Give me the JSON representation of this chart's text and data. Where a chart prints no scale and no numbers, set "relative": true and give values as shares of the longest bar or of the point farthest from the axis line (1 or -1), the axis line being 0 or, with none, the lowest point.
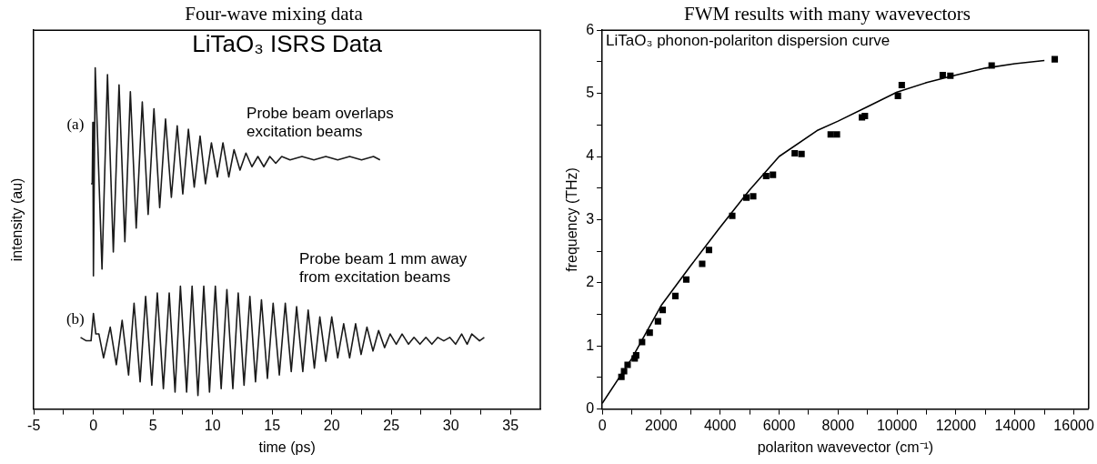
{
  "chart_data": [
    {
      "type": "line",
      "title": "Four-wave mixing data",
      "subtitle": "LiTaO₃ ISRS Data",
      "xlabel": "time (ps)",
      "ylabel": "intensity (au)",
      "relative": true,
      "tick_labels": "x",
      "xlim": [
        -5,
        37.5
      ],
      "xticks": [
        -5,
        {
          "value": -2.5,
          "label": null
        },
        0,
        {
          "value": 2.5,
          "label": null
        },
        5,
        {
          "value": 7.5,
          "label": null
        },
        10,
        {
          "value": 12.5,
          "label": null
        },
        15,
        {
          "value": 17.5,
          "label": null
        },
        20,
        {
          "value": 22.5,
          "label": null
        },
        25,
        {
          "value": 27.5,
          "label": null
        },
        30,
        {
          "value": 32.5,
          "label": null
        },
        35
      ],
      "series": [
        {
          "color": "#1a1a1a",
          "x": [
            -0.2,
            -0.1,
            -0.05,
            0,
            0.05,
            0.15,
            0.72,
            1.18,
            1.67,
            2.15,
            2.64,
            3.1,
            3.59,
            4.1,
            4.59,
            5.08,
            5.56,
            6.05,
            6.54,
            7.03,
            7.5,
            7.97,
            8.46,
            8.95,
            9.4,
            9.9,
            10.4,
            10.87,
            11.36,
            11.8,
            12.3,
            12.8,
            13.3,
            13.8,
            14.3,
            14.8,
            15.3,
            15.8,
            16.5,
            17.5,
            18.5,
            19.5,
            20.5,
            21.5,
            22.5,
            23.5,
            24.05
          ],
          "values": [
            0.66,
            0.66,
            0.84,
            0.39,
            0.6,
            1.0,
            0.41,
            0.98,
            0.46,
            0.95,
            0.49,
            0.93,
            0.53,
            0.9,
            0.57,
            0.88,
            0.59,
            0.85,
            0.62,
            0.83,
            0.63,
            0.82,
            0.65,
            0.8,
            0.66,
            0.78,
            0.68,
            0.78,
            0.68,
            0.76,
            0.7,
            0.75,
            0.71,
            0.74,
            0.71,
            0.74,
            0.72,
            0.74,
            0.73,
            0.74,
            0.73,
            0.74,
            0.73,
            0.74,
            0.73,
            0.74,
            0.73
          ]
        },
        {
          "color": "#1a1a1a",
          "x": [
            -1.08,
            -0.6,
            -0.2,
            0,
            0.2,
            0.46,
            0.85,
            1.41,
            1.92,
            2.41,
            2.95,
            3.41,
            3.92,
            4.38,
            4.9,
            5.36,
            5.87,
            6.36,
            6.85,
            7.3,
            7.82,
            8.28,
            8.77,
            9.26,
            9.74,
            10.23,
            10.72,
            11.2,
            11.7,
            12.15,
            12.64,
            13.13,
            13.6,
            14.1,
            14.6,
            15.08,
            15.6,
            16.1,
            16.6,
            17.05,
            17.57,
            18.02,
            18.54,
            19.0,
            19.5,
            20.0,
            20.5,
            21.0,
            21.5,
            22.0,
            22.46,
            22.95,
            23.46,
            23.93,
            24.43,
            24.9,
            25.41,
            25.9,
            26.44,
            26.9,
            27.4,
            27.9,
            28.4,
            28.9,
            29.4,
            29.9,
            30.39,
            30.9,
            31.36,
            31.75,
            32.4,
            32.8
          ],
          "values": [
            0.21,
            0.2,
            0.2,
            0.28,
            0.22,
            0.22,
            0.15,
            0.24,
            0.13,
            0.26,
            0.1,
            0.31,
            0.08,
            0.33,
            0.07,
            0.34,
            0.06,
            0.34,
            0.05,
            0.36,
            0.05,
            0.36,
            0.04,
            0.36,
            0.05,
            0.36,
            0.06,
            0.35,
            0.06,
            0.34,
            0.07,
            0.33,
            0.08,
            0.32,
            0.09,
            0.31,
            0.1,
            0.31,
            0.11,
            0.3,
            0.11,
            0.29,
            0.12,
            0.27,
            0.14,
            0.27,
            0.15,
            0.25,
            0.15,
            0.25,
            0.16,
            0.24,
            0.17,
            0.23,
            0.18,
            0.22,
            0.19,
            0.22,
            0.19,
            0.21,
            0.19,
            0.21,
            0.19,
            0.21,
            0.2,
            0.21,
            0.19,
            0.22,
            0.19,
            0.22,
            0.2,
            0.21
          ]
        }
      ],
      "annotations": [
        "(a)",
        "(b)",
        "Probe beam overlaps\nexcitation beams",
        "Probe beam 1 mm away\nfrom excitation beams"
      ]
    },
    {
      "type": "scatter",
      "title": "FWM results with many wavevectors",
      "subtitle": "LiTaO₃ phonon-polariton dispersion curve",
      "xlabel": "polariton wavevector (cm⁻¹)",
      "ylabel": "frequency (THz)",
      "xlim": [
        0,
        16500
      ],
      "xticks": [
        0,
        {
          "value": 1000,
          "label": null
        },
        2000,
        {
          "value": 3000,
          "label": null
        },
        4000,
        {
          "value": 5000,
          "label": null
        },
        6000,
        {
          "value": 7000,
          "label": null
        },
        8000,
        {
          "value": 9000,
          "label": null
        },
        10000,
        {
          "value": 11000,
          "label": null
        },
        12000,
        {
          "value": 13000,
          "label": null
        },
        14000,
        {
          "value": 15000,
          "label": null
        },
        16000
      ],
      "ylim": [
        0,
        6
      ],
      "yticks": [
        0,
        {
          "value": 0.5,
          "label": null
        },
        1,
        {
          "value": 1.5,
          "label": null
        },
        2,
        {
          "value": 2.5,
          "label": null
        },
        3,
        {
          "value": 3.5,
          "label": null
        },
        4,
        {
          "value": 4.5,
          "label": null
        },
        5,
        {
          "value": 5.5,
          "label": null
        },
        6
      ],
      "series": [
        {
          "marker": "square",
          "color": "#000000",
          "x": [
            650,
            740,
            860,
            1100,
            1150,
            1350,
            1610,
            1890,
            2050,
            2480,
            2850,
            3390,
            3620,
            4410,
            4890,
            5120,
            5560,
            5790,
            6530,
            6760,
            7750,
            7960,
            8810,
            8910,
            10030,
            10160,
            11550,
            11810,
            13210,
            15350
          ],
          "values": [
            0.51,
            0.6,
            0.7,
            0.8,
            0.85,
            1.06,
            1.21,
            1.39,
            1.57,
            1.79,
            2.05,
            2.3,
            2.52,
            3.06,
            3.35,
            3.37,
            3.69,
            3.71,
            4.05,
            4.04,
            4.35,
            4.35,
            4.62,
            4.64,
            4.96,
            5.13,
            5.29,
            5.28,
            5.44,
            5.54
          ]
        },
        {
          "type": "line",
          "marker": "none",
          "color": "#000000",
          "x": [
            0,
            1000,
            2000,
            3000,
            4000,
            5000,
            6000,
            7286,
            8000,
            9000,
            10000,
            11000,
            12000,
            13000,
            14000,
            15000
          ],
          "values": [
            0.09,
            0.8,
            1.64,
            2.27,
            2.88,
            3.47,
            4.0,
            4.41,
            4.56,
            4.79,
            5.02,
            5.17,
            5.29,
            5.4,
            5.47,
            5.52
          ]
        }
      ]
    }
  ]
}
